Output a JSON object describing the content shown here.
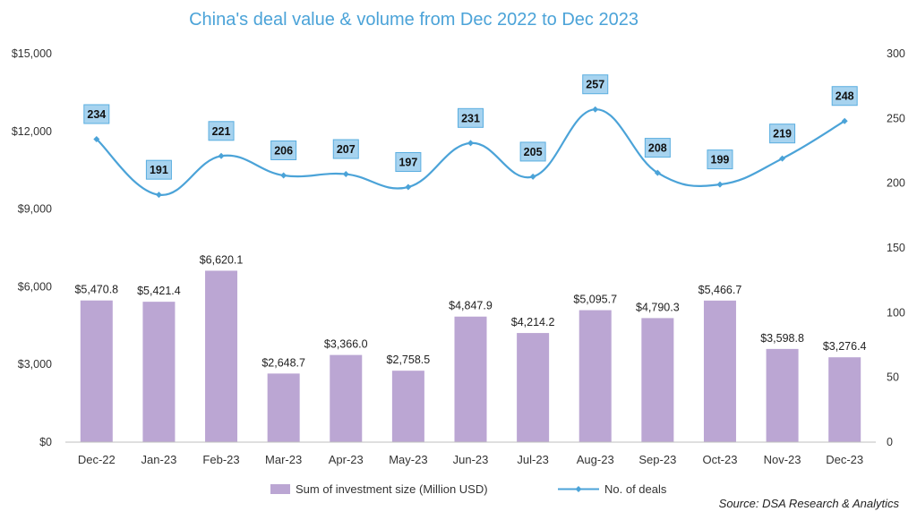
{
  "chart_data": {
    "type": "bar+line",
    "title": "China's deal value & volume from Dec 2022 to Dec 2023",
    "categories": [
      "Dec-22",
      "Jan-23",
      "Feb-23",
      "Mar-23",
      "Apr-23",
      "May-23",
      "Jun-23",
      "Jul-23",
      "Aug-23",
      "Sep-23",
      "Oct-23",
      "Nov-23",
      "Dec-23"
    ],
    "series": [
      {
        "name": "Sum of investment size (Million USD)",
        "type": "bar",
        "axis": "left",
        "color": "#bba6d3",
        "values": [
          5470.8,
          5421.4,
          6620.1,
          2648.7,
          3366.0,
          2758.5,
          4847.9,
          4214.2,
          5095.7,
          4790.3,
          5466.7,
          3598.8,
          3276.4
        ],
        "labels": [
          "$5,470.8",
          "$5,421.4",
          "$6,620.1",
          "$2,648.7",
          "$3,366.0",
          "$2,758.5",
          "$4,847.9",
          "$4,214.2",
          "$5,095.7",
          "$4,790.3",
          "$5,466.7",
          "$3,598.8",
          "$3,276.4"
        ]
      },
      {
        "name": "No. of deals",
        "type": "line",
        "axis": "right",
        "color": "#4ba3d8",
        "label_bg": "#a7d3ef",
        "label_border": "#5aaee0",
        "values": [
          234,
          191,
          221,
          206,
          207,
          197,
          231,
          205,
          257,
          208,
          199,
          219,
          248
        ],
        "labels": [
          "234",
          "191",
          "221",
          "206",
          "207",
          "197",
          "231",
          "205",
          "257",
          "208",
          "199",
          "219",
          "248"
        ]
      }
    ],
    "left_axis": {
      "min": 0,
      "max": 15000,
      "ticks": [
        0,
        3000,
        6000,
        9000,
        12000,
        15000
      ],
      "tick_labels": [
        "$0",
        "$3,000",
        "$6,000",
        "$9,000",
        "$12,000",
        "$15,000"
      ]
    },
    "right_axis": {
      "min": 0,
      "max": 300,
      "ticks": [
        0,
        50,
        100,
        150,
        200,
        250,
        300
      ],
      "tick_labels": [
        "0",
        "50",
        "100",
        "150",
        "200",
        "250",
        "300"
      ]
    },
    "legend_position": "bottom",
    "grid": false,
    "source": "Source: DSA Research & Analytics"
  }
}
